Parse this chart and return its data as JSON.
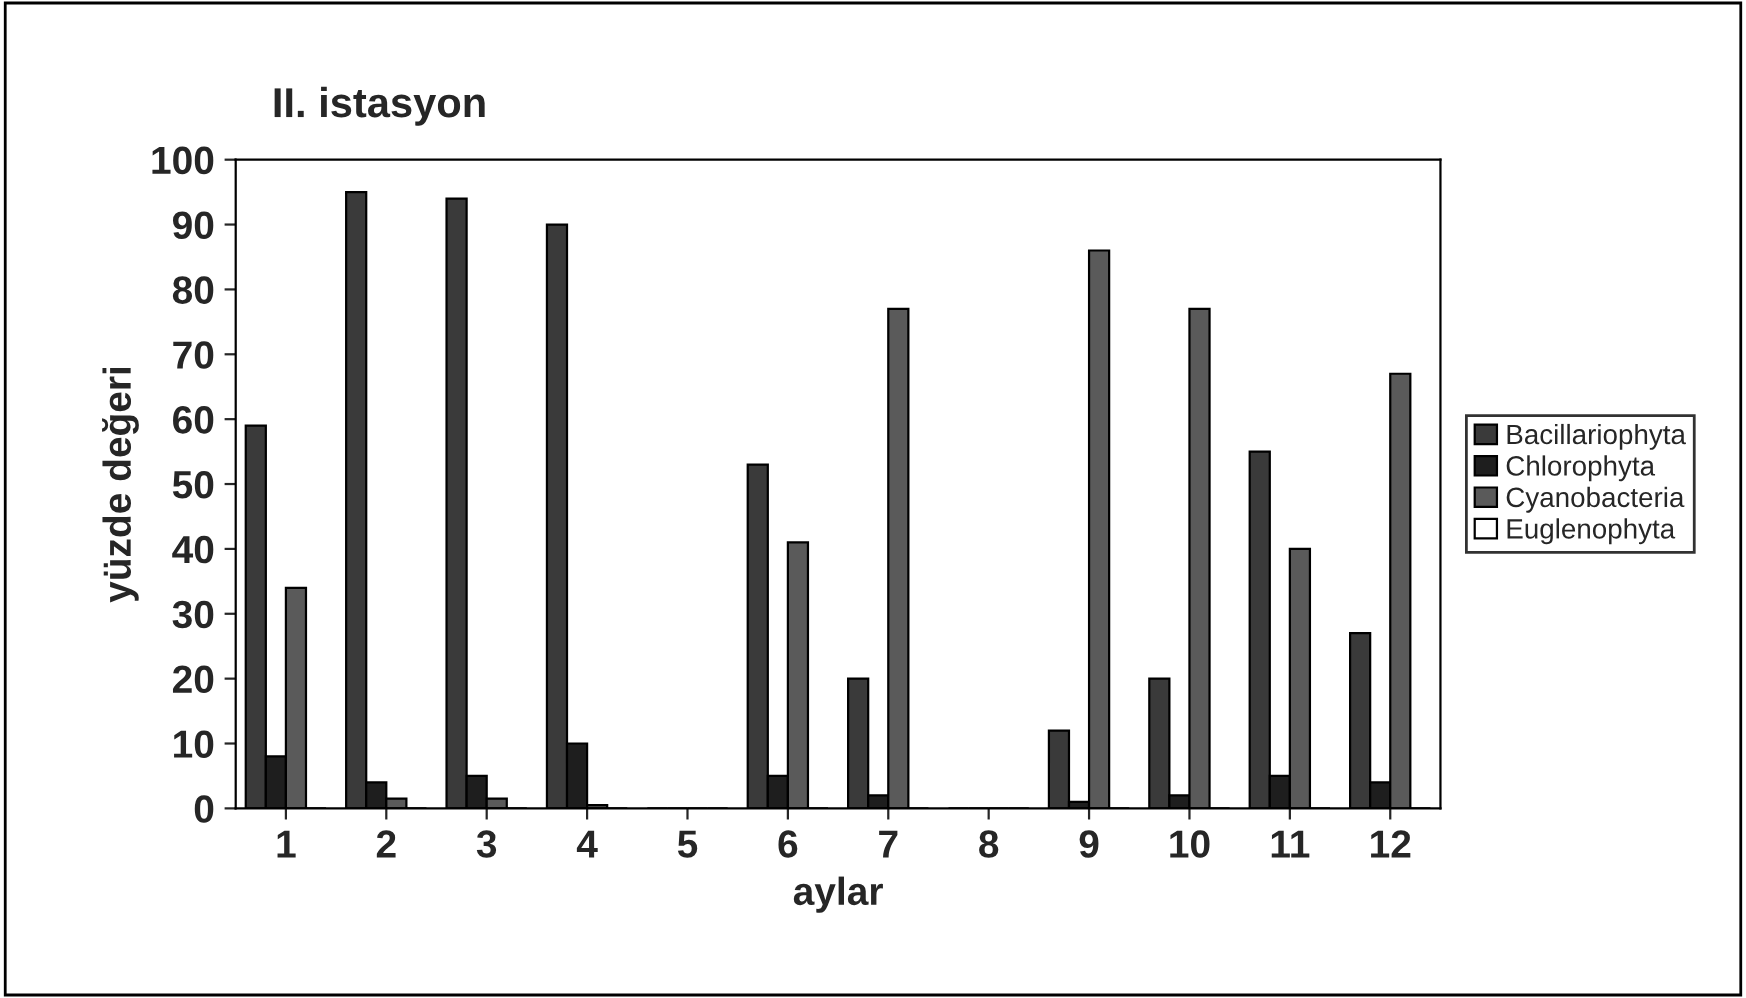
{
  "chart_data": {
    "type": "bar",
    "title": "II. istasyon",
    "xlabel": "aylar",
    "ylabel": "yüzde değeri",
    "categories": [
      "1",
      "2",
      "3",
      "4",
      "5",
      "6",
      "7",
      "8",
      "9",
      "10",
      "11",
      "12"
    ],
    "series": [
      {
        "name": "Bacillariophyta",
        "color": "#3a3a3a",
        "values": [
          59,
          95,
          94,
          90,
          0,
          53,
          20,
          0,
          12,
          20,
          55,
          27
        ]
      },
      {
        "name": "Chlorophyta",
        "color": "#1e1e1e",
        "values": [
          8,
          4,
          5,
          10,
          0,
          5,
          2,
          0,
          1,
          2,
          5,
          4
        ]
      },
      {
        "name": "Cyanobacteria",
        "color": "#5a5a5a",
        "values": [
          34,
          1.5,
          1.5,
          0.5,
          0,
          41,
          77,
          0,
          86,
          77,
          40,
          67
        ]
      },
      {
        "name": "Euglenophyta",
        "color": "#ffffff",
        "values": [
          0,
          0,
          0,
          0,
          0,
          0,
          0,
          0,
          0,
          0,
          0,
          0
        ]
      }
    ],
    "ylim": [
      0,
      100
    ],
    "yticks": [
      0,
      10,
      20,
      30,
      40,
      50,
      60,
      70,
      80,
      90,
      100
    ],
    "grid": false,
    "legend": "right"
  }
}
